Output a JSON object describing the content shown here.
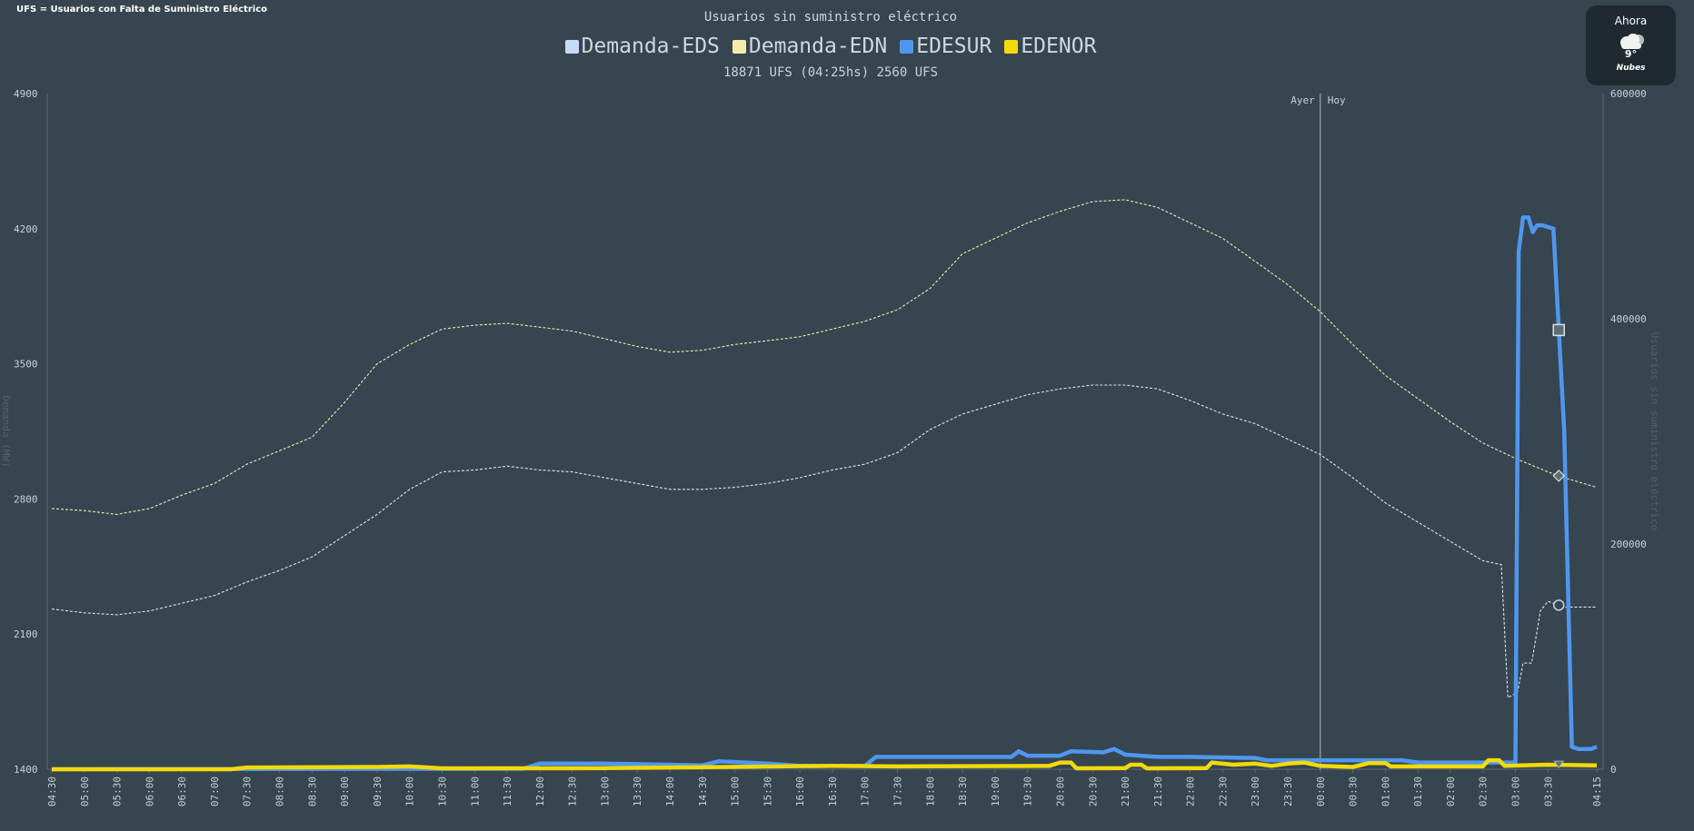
{
  "header": {
    "corner_note": "UFS = Usuarios con Falta de Suministro Eléctrico",
    "subtitle": "18871 UFS (04:25hs) 2560 UFS"
  },
  "weather": {
    "label": "Ahora",
    "temperature": "9°",
    "description": "Nubes",
    "icon": "cloud-icon"
  },
  "chart_data": {
    "type": "line",
    "title": "Usuarios sin suministro eléctrico",
    "y_left_label": "Demanda (MW)",
    "y_right_label": "Usuarios sin suministro eléctrico",
    "y_left_range": [
      1400,
      4900
    ],
    "y_left_ticks": [
      "1400",
      "2100",
      "2800",
      "3500",
      "4200",
      "4900"
    ],
    "y_right_range": [
      0,
      600000
    ],
    "y_right_ticks": [
      "0",
      "200000",
      "400000",
      "600000"
    ],
    "x_labels": [
      "04:30",
      "05:00",
      "05:30",
      "06:00",
      "06:30",
      "07:00",
      "07:30",
      "08:00",
      "08:30",
      "09:00",
      "09:30",
      "10:00",
      "10:30",
      "11:00",
      "11:30",
      "12:00",
      "12:30",
      "13:00",
      "13:30",
      "14:00",
      "14:30",
      "15:00",
      "15:30",
      "16:00",
      "16:30",
      "17:00",
      "17:30",
      "18:00",
      "18:30",
      "19:00",
      "19:30",
      "20:00",
      "20:30",
      "21:00",
      "21:30",
      "22:00",
      "22:30",
      "23:00",
      "23:30",
      "00:00",
      "00:30",
      "01:00",
      "01:30",
      "02:00",
      "02:30",
      "03:00",
      "03:30",
      "04:15"
    ],
    "day_divider": {
      "at": "00:00",
      "left_label": "Ayer",
      "right_label": "Hoy"
    },
    "legend_placement": "top-center",
    "grid": false,
    "series": [
      {
        "name": "Demanda-EDS",
        "axis": "left",
        "style": "dashed",
        "color": "#dfe6ec",
        "legend_color": "#c6dcf5",
        "points": [
          [
            "04:30",
            2230
          ],
          [
            "05:00",
            2210
          ],
          [
            "05:30",
            2200
          ],
          [
            "06:00",
            2220
          ],
          [
            "06:30",
            2260
          ],
          [
            "07:00",
            2300
          ],
          [
            "07:30",
            2370
          ],
          [
            "08:00",
            2430
          ],
          [
            "08:30",
            2500
          ],
          [
            "09:00",
            2610
          ],
          [
            "09:30",
            2720
          ],
          [
            "10:00",
            2850
          ],
          [
            "10:30",
            2940
          ],
          [
            "11:00",
            2950
          ],
          [
            "11:30",
            2970
          ],
          [
            "12:00",
            2950
          ],
          [
            "12:30",
            2940
          ],
          [
            "13:00",
            2910
          ],
          [
            "13:30",
            2880
          ],
          [
            "14:00",
            2850
          ],
          [
            "14:30",
            2850
          ],
          [
            "15:00",
            2860
          ],
          [
            "15:30",
            2880
          ],
          [
            "16:00",
            2910
          ],
          [
            "16:30",
            2950
          ],
          [
            "17:00",
            2980
          ],
          [
            "17:30",
            3040
          ],
          [
            "18:00",
            3160
          ],
          [
            "18:30",
            3240
          ],
          [
            "19:00",
            3290
          ],
          [
            "19:30",
            3340
          ],
          [
            "20:00",
            3370
          ],
          [
            "20:30",
            3390
          ],
          [
            "21:00",
            3390
          ],
          [
            "21:30",
            3370
          ],
          [
            "22:00",
            3310
          ],
          [
            "22:30",
            3240
          ],
          [
            "23:00",
            3190
          ],
          [
            "23:30",
            3110
          ],
          [
            "00:00",
            3030
          ],
          [
            "00:30",
            2910
          ],
          [
            "01:00",
            2780
          ],
          [
            "01:30",
            2680
          ],
          [
            "02:00",
            2580
          ],
          [
            "02:30",
            2480
          ],
          [
            "02:47",
            2460
          ],
          [
            "02:53",
            1770
          ],
          [
            "03:02",
            1800
          ],
          [
            "03:07",
            1950
          ],
          [
            "03:15",
            1950
          ],
          [
            "03:23",
            2220
          ],
          [
            "03:30",
            2270
          ],
          [
            "03:45",
            2240
          ],
          [
            "04:15",
            2240
          ]
        ]
      },
      {
        "name": "Demanda-EDN",
        "axis": "left",
        "style": "dashed",
        "color": "#f1ebb3",
        "legend_color": "#f5eaa8",
        "points": [
          [
            "04:30",
            2750
          ],
          [
            "05:00",
            2740
          ],
          [
            "05:30",
            2720
          ],
          [
            "06:00",
            2750
          ],
          [
            "06:30",
            2820
          ],
          [
            "07:00",
            2880
          ],
          [
            "07:30",
            2980
          ],
          [
            "08:00",
            3050
          ],
          [
            "08:30",
            3120
          ],
          [
            "09:00",
            3300
          ],
          [
            "09:30",
            3500
          ],
          [
            "10:00",
            3600
          ],
          [
            "10:30",
            3680
          ],
          [
            "11:00",
            3700
          ],
          [
            "11:30",
            3710
          ],
          [
            "12:00",
            3690
          ],
          [
            "12:30",
            3670
          ],
          [
            "13:00",
            3630
          ],
          [
            "13:30",
            3590
          ],
          [
            "14:00",
            3560
          ],
          [
            "14:30",
            3570
          ],
          [
            "15:00",
            3600
          ],
          [
            "15:30",
            3620
          ],
          [
            "16:00",
            3640
          ],
          [
            "16:30",
            3680
          ],
          [
            "17:00",
            3720
          ],
          [
            "17:30",
            3780
          ],
          [
            "18:00",
            3890
          ],
          [
            "18:30",
            4070
          ],
          [
            "19:00",
            4150
          ],
          [
            "19:30",
            4230
          ],
          [
            "20:00",
            4290
          ],
          [
            "20:30",
            4340
          ],
          [
            "21:00",
            4350
          ],
          [
            "21:30",
            4310
          ],
          [
            "22:00",
            4230
          ],
          [
            "22:30",
            4150
          ],
          [
            "23:00",
            4030
          ],
          [
            "23:30",
            3910
          ],
          [
            "00:00",
            3770
          ],
          [
            "00:30",
            3600
          ],
          [
            "01:00",
            3440
          ],
          [
            "01:30",
            3320
          ],
          [
            "02:00",
            3200
          ],
          [
            "02:30",
            3090
          ],
          [
            "03:00",
            3010
          ],
          [
            "03:30",
            2940
          ],
          [
            "03:45",
            2910
          ],
          [
            "04:15",
            2860
          ]
        ]
      },
      {
        "name": "EDESUR",
        "axis": "right",
        "style": "solid",
        "color": "#4f97ee",
        "legend_color": "#4f97ee",
        "points": [
          [
            "04:30",
            0
          ],
          [
            "11:45",
            500
          ],
          [
            "12:00",
            5000
          ],
          [
            "13:00",
            5000
          ],
          [
            "14:30",
            3500
          ],
          [
            "14:45",
            7000
          ],
          [
            "15:30",
            5000
          ],
          [
            "16:00",
            3000
          ],
          [
            "17:00",
            3000
          ],
          [
            "17:10",
            11000
          ],
          [
            "19:15",
            11000
          ],
          [
            "19:22",
            16000
          ],
          [
            "19:30",
            12000
          ],
          [
            "20:00",
            12000
          ],
          [
            "20:10",
            16000
          ],
          [
            "20:40",
            15000
          ],
          [
            "20:50",
            18000
          ],
          [
            "21:00",
            13000
          ],
          [
            "21:30",
            11000
          ],
          [
            "22:00",
            11000
          ],
          [
            "23:00",
            10000
          ],
          [
            "23:10",
            8000
          ],
          [
            "01:15",
            8000
          ],
          [
            "01:30",
            6000
          ],
          [
            "02:45",
            6000
          ],
          [
            "03:00",
            6000
          ],
          [
            "03:03",
            460000
          ],
          [
            "03:07",
            490000
          ],
          [
            "03:12",
            490000
          ],
          [
            "03:16",
            477000
          ],
          [
            "03:20",
            483000
          ],
          [
            "03:25",
            483000
          ],
          [
            "03:35",
            480000
          ],
          [
            "03:45",
            300000
          ],
          [
            "03:52",
            20000
          ],
          [
            "03:58",
            18000
          ],
          [
            "04:10",
            18000
          ],
          [
            "04:15",
            20000
          ]
        ]
      },
      {
        "name": "EDENOR",
        "axis": "right",
        "style": "solid",
        "color": "#f2da09",
        "legend_color": "#f2da09",
        "points": [
          [
            "04:30",
            0
          ],
          [
            "07:15",
            0
          ],
          [
            "07:30",
            1500
          ],
          [
            "09:30",
            2000
          ],
          [
            "10:00",
            2500
          ],
          [
            "10:30",
            800
          ],
          [
            "13:00",
            1000
          ],
          [
            "16:30",
            3000
          ],
          [
            "17:30",
            2500
          ],
          [
            "19:50",
            3000
          ],
          [
            "20:00",
            6000
          ],
          [
            "20:10",
            6000
          ],
          [
            "20:15",
            800
          ],
          [
            "21:00",
            1000
          ],
          [
            "21:05",
            4000
          ],
          [
            "21:15",
            4000
          ],
          [
            "21:20",
            800
          ],
          [
            "22:15",
            1000
          ],
          [
            "22:20",
            6000
          ],
          [
            "22:40",
            4000
          ],
          [
            "23:00",
            5000
          ],
          [
            "23:15",
            3000
          ],
          [
            "23:30",
            5000
          ],
          [
            "23:45",
            6000
          ],
          [
            "00:00",
            3000
          ],
          [
            "00:30",
            2000
          ],
          [
            "00:45",
            5500
          ],
          [
            "01:00",
            5500
          ],
          [
            "01:05",
            2500
          ],
          [
            "02:30",
            2500
          ],
          [
            "02:35",
            8000
          ],
          [
            "02:45",
            8000
          ],
          [
            "02:50",
            3000
          ],
          [
            "03:30",
            4000
          ],
          [
            "04:15",
            3500
          ]
        ]
      }
    ],
    "markers": [
      {
        "series": "EDESUR",
        "at": "03:40",
        "shape": "square"
      },
      {
        "series": "Demanda-EDN",
        "at": "03:40",
        "shape": "diamond"
      },
      {
        "series": "Demanda-EDS",
        "at": "03:40",
        "shape": "circle"
      },
      {
        "series": "EDENOR",
        "at": "03:40",
        "shape": "triangle"
      }
    ]
  }
}
